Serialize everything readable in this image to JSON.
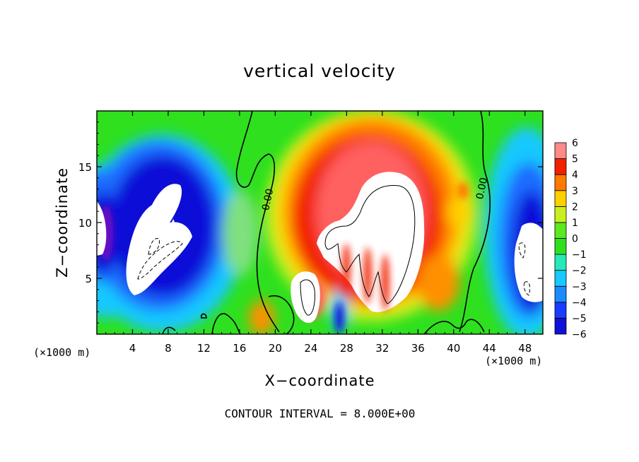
{
  "chart_data": {
    "type": "heatmap",
    "title": "vertical velocity",
    "xlabel": "X−coordinate",
    "ylabel": "Z−coordinate",
    "x_unit": "(×1000 m)",
    "x_unit_right": "(×1000 m)",
    "xlim": [
      0,
      50
    ],
    "ylim": [
      0,
      20
    ],
    "x_ticks": [
      4,
      8,
      12,
      16,
      20,
      24,
      28,
      32,
      36,
      40,
      44,
      48
    ],
    "y_ticks": [
      5,
      10,
      15
    ],
    "colorbar": {
      "levels": [
        -6,
        -5,
        -4,
        -3,
        -2,
        -1,
        0,
        1,
        2,
        3,
        4,
        5,
        6
      ],
      "labels": [
        "6",
        "5",
        "4",
        "3",
        "2",
        "1",
        "0",
        "−1",
        "−2",
        "−3",
        "−4",
        "−5",
        "−6"
      ]
    },
    "contour_labels": [
      {
        "text": "0.00",
        "x": 19.5,
        "y": 12.0
      },
      {
        "text": "0.00",
        "x": 43.5,
        "y": 13.0
      }
    ],
    "contour_interval_text": "CONTOUR INTERVAL = 8.000E+00",
    "features": [
      {
        "kind": "updraft",
        "x": 32.0,
        "z": 9.5,
        "peak": 6
      },
      {
        "kind": "updraft",
        "x": 24.0,
        "z": 4.5,
        "peak": 6
      },
      {
        "kind": "downdraft",
        "x": 7.0,
        "z": 8.5,
        "peak": -6
      },
      {
        "kind": "downdraft",
        "x": 0.5,
        "z": 10.0,
        "peak": -6
      },
      {
        "kind": "downdraft",
        "x": 48.0,
        "z": 6.5,
        "peak": -6
      }
    ]
  }
}
